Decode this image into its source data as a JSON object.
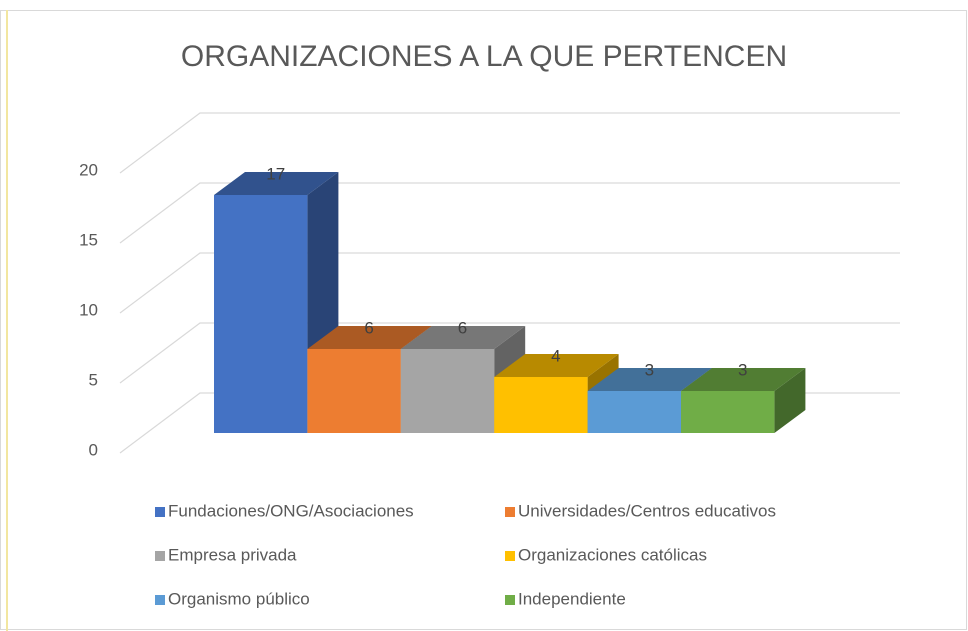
{
  "chart_data": {
    "type": "bar3d",
    "title": "ORGANIZACIONES A LA QUE PERTENCEN",
    "categories": [
      "Fundaciones/ONG/Asociaciones",
      "Universidades/Centros educativos",
      "Empresa privada",
      "Organizaciones católicas",
      "Organismo público",
      "Independiente"
    ],
    "values": [
      17,
      6,
      6,
      4,
      3,
      3
    ],
    "colors": [
      "#4472c4",
      "#ed7d31",
      "#a5a5a5",
      "#ffc000",
      "#5b9bd5",
      "#70ad47"
    ],
    "ylim": [
      0,
      20
    ],
    "yticks": [
      0,
      5,
      10,
      15,
      20
    ],
    "grid": true,
    "legend": "bottom"
  }
}
